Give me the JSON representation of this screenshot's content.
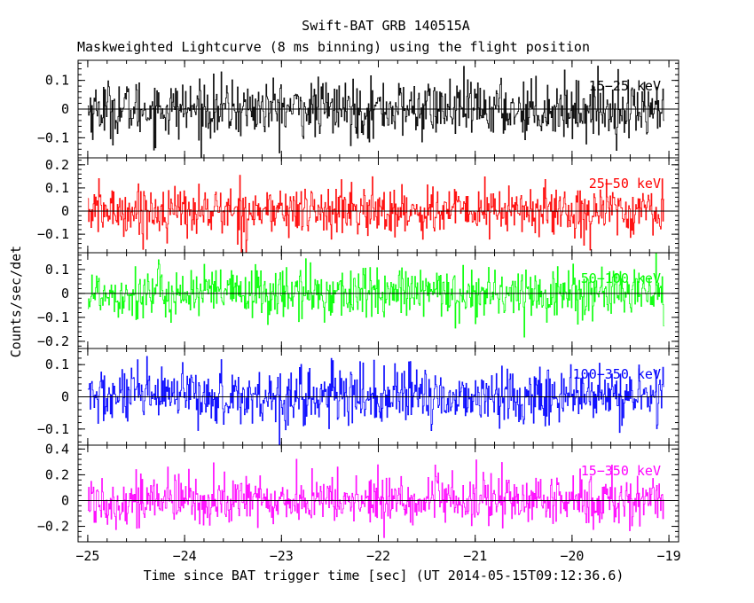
{
  "chart_data": {
    "type": "line",
    "title": "Swift-BAT GRB 140515A",
    "subtitle": "Maskweighted Lightcurve (8 ms binning) using the flight position",
    "xlabel": "Time since BAT trigger time [sec] (UT 2014-05-15T09:12:36.6)",
    "ylabel": "Counts/sec/det",
    "xlim": [
      -25.1,
      -18.9
    ],
    "x_ticks": [
      -25,
      -24,
      -23,
      -22,
      -21,
      -20,
      -19
    ],
    "x_tick_labels": [
      "−25",
      "−24",
      "−23",
      "−22",
      "−21",
      "−20",
      "−19"
    ],
    "data_x_range": [
      -25.0,
      -19.05
    ],
    "bin_width": 0.008,
    "zero_line": true,
    "grid": false,
    "legend": "label inside upper-right of each panel",
    "panels": [
      {
        "name": "15-25 keV",
        "label": "15−25 keV",
        "color": "#000000",
        "ylim": [
          -0.17,
          0.17
        ],
        "y_ticks": [
          -0.1,
          0,
          0.1
        ],
        "y_tick_labels": [
          "−0.1",
          "0",
          "0.1"
        ],
        "noise_sigma": 0.05
      },
      {
        "name": "25-50 keV",
        "label": "25−50 keV",
        "color": "#ff0000",
        "ylim": [
          -0.18,
          0.23
        ],
        "y_ticks": [
          -0.1,
          0,
          0.1,
          0.2
        ],
        "y_tick_labels": [
          "−0.1",
          "0",
          "0.1",
          "0.2"
        ],
        "noise_sigma": 0.055
      },
      {
        "name": "50-100 keV",
        "label": "50−100 keV",
        "color": "#00ff00",
        "ylim": [
          -0.23,
          0.17
        ],
        "y_ticks": [
          -0.2,
          -0.1,
          0,
          0.1
        ],
        "y_tick_labels": [
          "−0.2",
          "−0.1",
          "0",
          "0.1"
        ],
        "noise_sigma": 0.055
      },
      {
        "name": "100-350 keV",
        "label": "100−350 keV",
        "color": "#0000ff",
        "ylim": [
          -0.15,
          0.15
        ],
        "y_ticks": [
          -0.1,
          0,
          0.1
        ],
        "y_tick_labels": [
          "−0.1",
          "0",
          "0.1"
        ],
        "noise_sigma": 0.045
      },
      {
        "name": "15-350 keV",
        "label": "15−350 keV",
        "color": "#ff00ff",
        "ylim": [
          -0.32,
          0.43
        ],
        "y_ticks": [
          -0.2,
          0,
          0.2,
          0.4
        ],
        "y_tick_labels": [
          "−0.2",
          "0",
          "0.2",
          "0.4"
        ],
        "noise_sigma": 0.1
      }
    ]
  }
}
